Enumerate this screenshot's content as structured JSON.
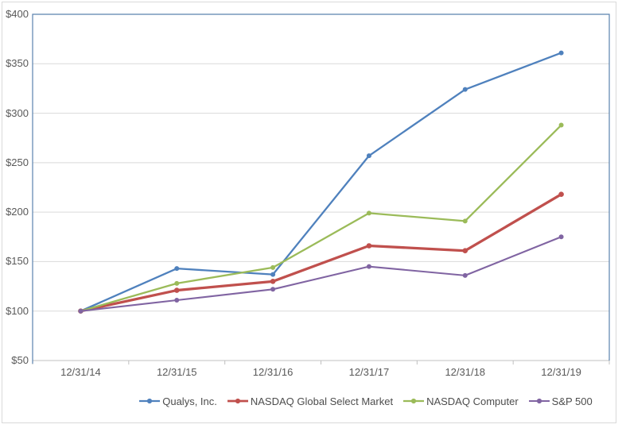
{
  "chart_data": {
    "type": "line",
    "title": "",
    "x_categories": [
      "12/31/14",
      "12/31/15",
      "12/31/16",
      "12/31/17",
      "12/31/18",
      "12/31/19"
    ],
    "y_tick_labels": [
      "$400",
      "$350",
      "$300",
      "$250",
      "$200",
      "$150",
      "$100",
      "$50"
    ],
    "ylim": [
      50,
      400
    ],
    "y_tick_step": 50,
    "grid": true,
    "legend_position": "bottom",
    "series": [
      {
        "name": "Qualys, Inc.",
        "color": "#4F81BD",
        "line_width": 2.3,
        "values": [
          100,
          143,
          137,
          257,
          324,
          361
        ]
      },
      {
        "name": "NASDAQ Global Select Market",
        "color": "#C0504D",
        "line_width": 3.3,
        "values": [
          100,
          121,
          130,
          166,
          161,
          218
        ]
      },
      {
        "name": "NASDAQ Computer",
        "color": "#9BBB59",
        "line_width": 2.3,
        "values": [
          100,
          128,
          144,
          199,
          191,
          288
        ]
      },
      {
        "name": "S&P 500",
        "color": "#8064A2",
        "line_width": 2.1,
        "values": [
          100,
          111,
          122,
          145,
          136,
          175
        ]
      }
    ]
  },
  "colors": {
    "background": "#FFFFFF",
    "frame_border": "#D9D9D9",
    "plot_border": "#5B82AE",
    "gridline": "#D9D9D9",
    "axis_line": "#C0C0C0",
    "axis_label": "#595959",
    "legend_text": "#4D4D4D"
  }
}
